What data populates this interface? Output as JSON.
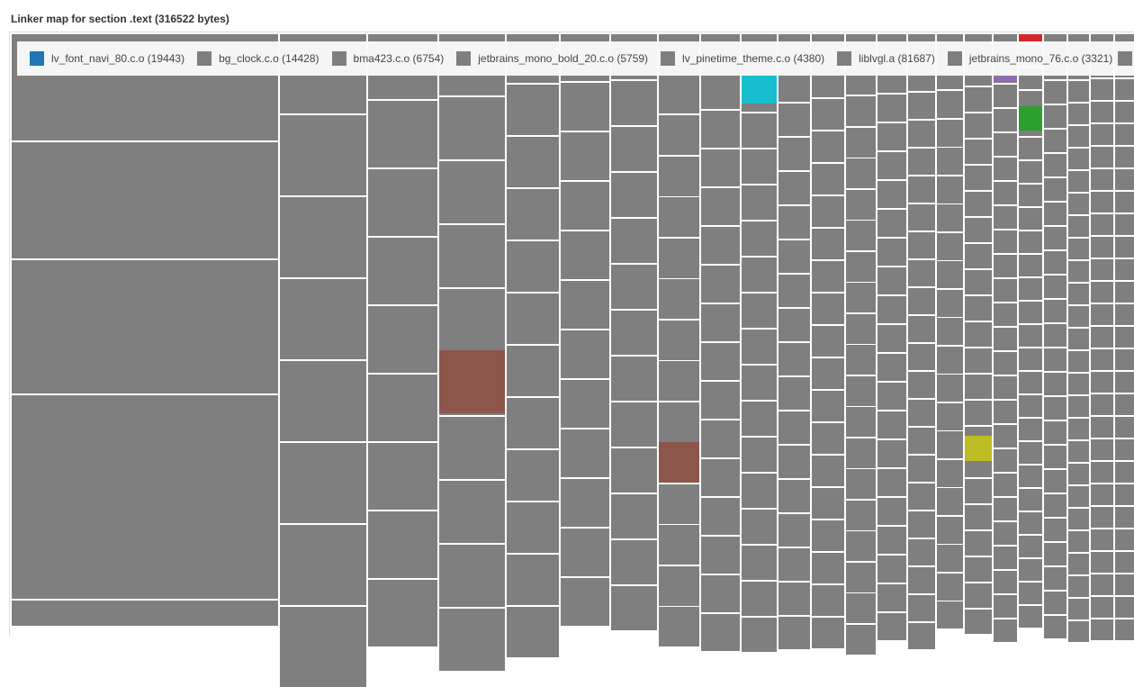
{
  "chart_data": {
    "type": "treemap",
    "title": "Linker map for section .text (316522 bytes)",
    "legend_placement": "top",
    "legend": [
      {
        "name": "lv_font_navi_80.c.o",
        "size": 19443,
        "label": "lv_font_navi_80.c.o (19443)",
        "color": "#1f77b4"
      },
      {
        "name": "bg_clock.c.o",
        "size": 14428,
        "label": "bg_clock.c.o (14428)",
        "color": "#7f7f7f"
      },
      {
        "name": "bma423.c.o",
        "size": 6754,
        "label": "bma423.c.o (6754)",
        "color": "#7f7f7f"
      },
      {
        "name": "jetbrains_mono_bold_20.c.o",
        "size": 5759,
        "label": "jetbrains_mono_bold_20.c.o (5759)",
        "color": "#7f7f7f"
      },
      {
        "name": "lv_pinetime_theme.c.o",
        "size": 4380,
        "label": "lv_pinetime_theme.c.o (4380)",
        "color": "#7f7f7f"
      },
      {
        "name": "liblvgl.a",
        "size": 81687,
        "label": "liblvgl.a (81687)",
        "color": "#7f7f7f"
      },
      {
        "name": "jetbrains_mono_76.c.o",
        "size": 3321,
        "label": "jetbrains_mono_76.c.o (3321)",
        "color": "#7f7f7f"
      }
    ],
    "colors": {
      "default": "#7f7f7f",
      "highlights": [
        "#17becf",
        "#8c564b",
        "#bcbd22",
        "#2ca02c",
        "#d62728",
        "#9467bd"
      ]
    }
  }
}
